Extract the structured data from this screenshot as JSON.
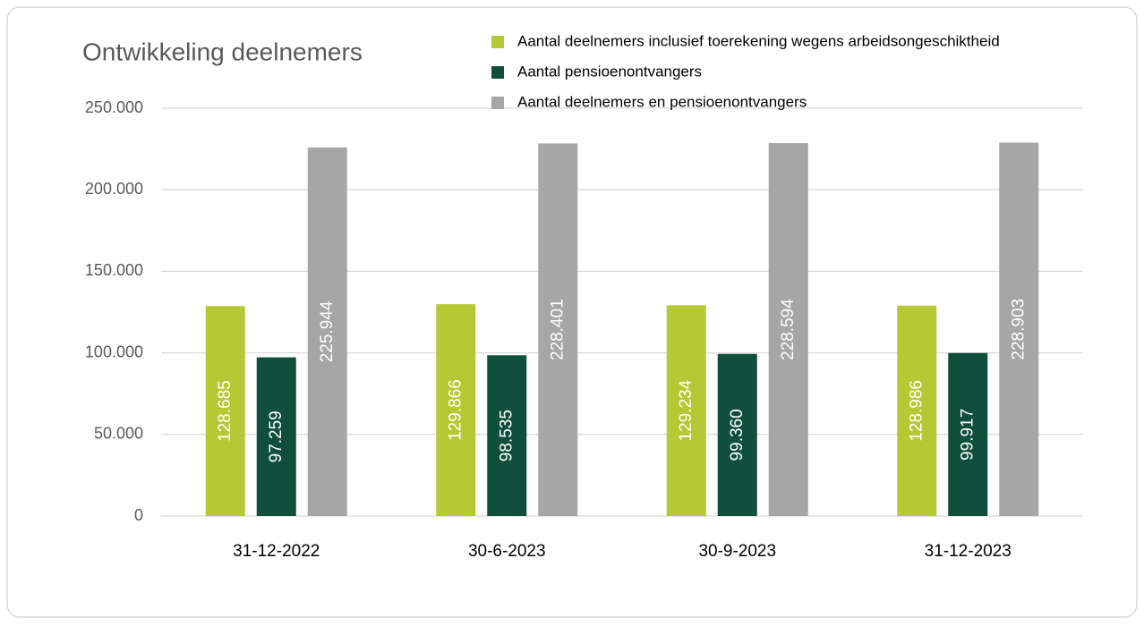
{
  "chart_data": {
    "type": "bar",
    "title": "Ontwikkeling deelnemers",
    "categories": [
      "31-12-2022",
      "30-6-2023",
      "30-9-2023",
      "31-12-2023"
    ],
    "series": [
      {
        "name": "Aantal deelnemers inclusief toerekening wegens arbeidsongeschiktheid",
        "color": "#b5c934",
        "values": [
          128685,
          129866,
          129234,
          128986
        ],
        "value_labels": [
          "128.685",
          "129.866",
          "129.234",
          "128.986"
        ]
      },
      {
        "name": "Aantal pensioenontvangers",
        "color": "#0f4f3c",
        "values": [
          97259,
          98535,
          99360,
          99917
        ],
        "value_labels": [
          "97.259",
          "98.535",
          "99.360",
          "99.917"
        ]
      },
      {
        "name": "Aantal deelnemers en pensioenontvangers",
        "color": "#a6a6a6",
        "values": [
          225944,
          228401,
          228594,
          228903
        ],
        "value_labels": [
          "225.944",
          "228.401",
          "228.594",
          "228.903"
        ]
      }
    ],
    "ylim": [
      0,
      250000
    ],
    "yticks": [
      0,
      {
        "value": 50000,
        "label": "50.000"
      },
      {
        "value": 100000,
        "label": "100.000"
      },
      {
        "value": 150000,
        "label": "150.000"
      },
      {
        "value": 200000,
        "label": "200.000"
      },
      {
        "value": 250000,
        "label": "250.000"
      }
    ],
    "grid": true,
    "legend": "top-right"
  }
}
